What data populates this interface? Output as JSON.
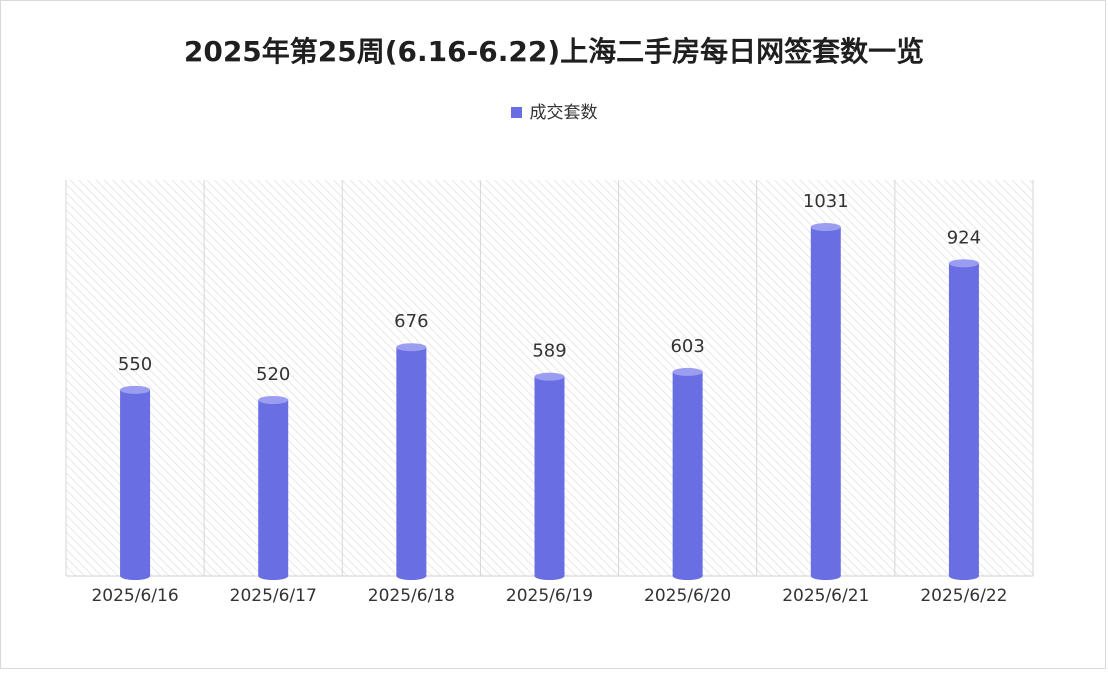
{
  "title": "2025年第25周(6.16-6.22)上海二手房每日网签套数一览",
  "legend": {
    "label": "成交套数",
    "color": "#6a6ee3"
  },
  "chart_data": {
    "type": "bar",
    "title": "2025年第25周(6.16-6.22)上海二手房每日网签套数一览",
    "categories": [
      "2025/6/16",
      "2025/6/17",
      "2025/6/18",
      "2025/6/19",
      "2025/6/20",
      "2025/6/21",
      "2025/6/22"
    ],
    "series": [
      {
        "name": "成交套数",
        "values": [
          550,
          520,
          676,
          589,
          603,
          1031,
          924
        ],
        "color": "#6a6ee3"
      }
    ],
    "ylim": [
      0,
      1170
    ],
    "xlabel": "",
    "ylabel": "",
    "grid": false,
    "data_labels": true,
    "legend_position": "top-center",
    "style": "cylinder",
    "background": "hatched"
  }
}
